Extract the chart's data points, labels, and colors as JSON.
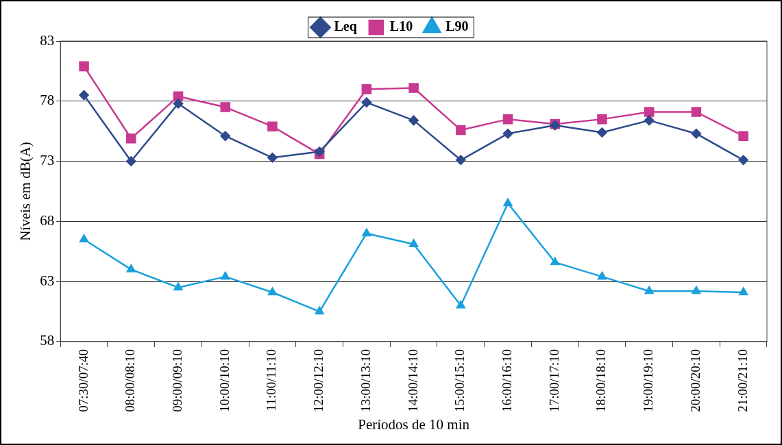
{
  "chart_data": {
    "type": "line",
    "xlabel": "Períodos de 10 min",
    "ylabel": "Níveis em dB(A)",
    "categories": [
      "07:30/07:40",
      "08:00/08:10",
      "09:00/09:10",
      "10:00/10:10",
      "11:00/11:10",
      "12:00/12:10",
      "13:00/13:10",
      "14:00/14:10",
      "15:00/15:10",
      "16:00/16:10",
      "17:00/17:10",
      "18:00/18:10",
      "19:00/19:10",
      "20:00/20:10",
      "21:00/21:10"
    ],
    "series": [
      {
        "name": "Leq",
        "color": "#2e4a8c",
        "marker": "diamond",
        "values": [
          78.5,
          73.0,
          77.8,
          75.1,
          73.3,
          73.8,
          77.9,
          76.4,
          73.1,
          75.3,
          76.0,
          75.4,
          76.4,
          75.3,
          73.1
        ]
      },
      {
        "name": "L10",
        "color": "#c8398f",
        "marker": "square",
        "values": [
          80.9,
          74.9,
          78.4,
          77.5,
          75.9,
          73.6,
          79.0,
          79.1,
          75.6,
          76.5,
          76.1,
          76.5,
          77.1,
          77.1,
          75.1
        ]
      },
      {
        "name": "L90",
        "color": "#1aa0dc",
        "marker": "triangle",
        "values": [
          66.5,
          64.0,
          62.5,
          63.4,
          62.1,
          60.5,
          67.0,
          66.1,
          61.0,
          69.5,
          64.6,
          63.4,
          62.2,
          62.2,
          62.1
        ]
      }
    ],
    "ylim": [
      58,
      83
    ],
    "yticks": [
      58,
      63,
      68,
      73,
      78,
      83
    ],
    "grid": "y",
    "legend": "top"
  }
}
